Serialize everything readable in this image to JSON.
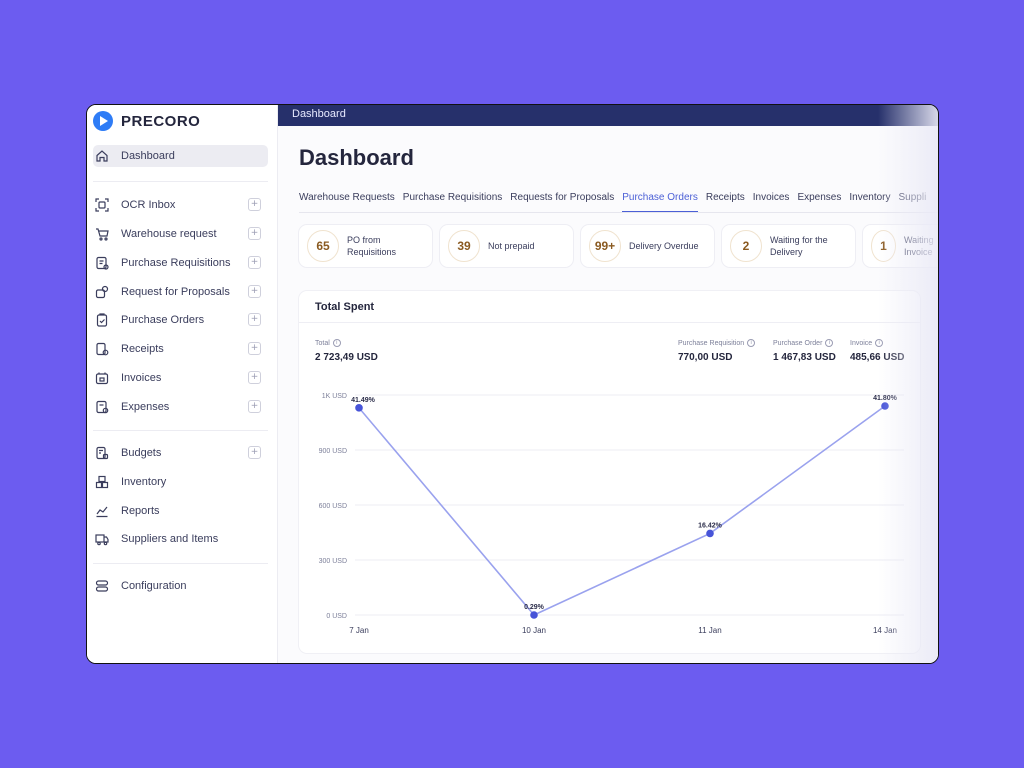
{
  "app": {
    "brand": "PRECORO"
  },
  "sidebar": {
    "items": [
      {
        "label": "Dashboard",
        "icon": "home-icon",
        "active": true,
        "plus": false
      },
      {
        "label": "OCR Inbox",
        "icon": "scan-icon",
        "plus": true
      },
      {
        "label": "Warehouse request",
        "icon": "cart-icon",
        "plus": true
      },
      {
        "label": "Purchase Requisitions",
        "icon": "requisition-icon",
        "plus": true
      },
      {
        "label": "Request for Proposals",
        "icon": "proposal-icon",
        "plus": true
      },
      {
        "label": "Purchase Orders",
        "icon": "clipboard-icon",
        "plus": true
      },
      {
        "label": "Receipts",
        "icon": "receipt-icon",
        "plus": true
      },
      {
        "label": "Invoices",
        "icon": "invoice-icon",
        "plus": true
      },
      {
        "label": "Expenses",
        "icon": "expense-icon",
        "plus": true
      },
      {
        "label": "Budgets",
        "icon": "budget-icon",
        "plus": true
      },
      {
        "label": "Inventory",
        "icon": "boxes-icon",
        "plus": false
      },
      {
        "label": "Reports",
        "icon": "chart-icon",
        "plus": false
      },
      {
        "label": "Suppliers and Items",
        "icon": "truck-icon",
        "plus": false
      },
      {
        "label": "Configuration",
        "icon": "settings-icon",
        "plus": false
      }
    ]
  },
  "topbar": {
    "title": "Dashboard"
  },
  "page": {
    "title": "Dashboard"
  },
  "tabs": [
    {
      "label": "Warehouse Requests",
      "active": false
    },
    {
      "label": "Purchase Requisitions",
      "active": false
    },
    {
      "label": "Requests for Proposals",
      "active": false
    },
    {
      "label": "Purchase Orders",
      "active": true
    },
    {
      "label": "Receipts",
      "active": false
    },
    {
      "label": "Invoices",
      "active": false
    },
    {
      "label": "Expenses",
      "active": false
    },
    {
      "label": "Inventory",
      "active": false
    },
    {
      "label": "Suppli",
      "active": false
    }
  ],
  "stats": [
    {
      "value": "65",
      "label": "PO from Requisitions"
    },
    {
      "value": "39",
      "label": "Not prepaid"
    },
    {
      "value": "99+",
      "label": "Delivery Overdue"
    },
    {
      "value": "2",
      "label": "Waiting for the Delivery"
    },
    {
      "value": "1",
      "label": "Waiting Invoice"
    }
  ],
  "card": {
    "title": "Total Spent",
    "metrics": [
      {
        "label": "Total",
        "value": "2 723,49 USD"
      },
      {
        "label": "Purchase Requisition",
        "value": "770,00 USD"
      },
      {
        "label": "Purchase Order",
        "value": "1 467,83 USD"
      },
      {
        "label": "Invoice",
        "value": "485,66 USD"
      }
    ]
  },
  "colors": {
    "accent": "#4b5fd6",
    "line": "#9aa2ee",
    "point": "#4754d8",
    "sidebarActive": "#ececf2",
    "topbar": "#26306b",
    "background": "#6c5cf0"
  },
  "chart_data": {
    "type": "line",
    "categories": [
      "7 Jan",
      "10 Jan",
      "11 Jan",
      "14 Jan"
    ],
    "values": [
      1130,
      0,
      445,
      1140
    ],
    "data_labels": [
      "41.49%",
      "0.29%",
      "16.42%",
      "41.80%"
    ],
    "y_tick_labels": [
      "0 USD",
      "300 USD",
      "600 USD",
      "900 USD",
      "1K USD"
    ],
    "y_tick_values": [
      0,
      300,
      600,
      900,
      1200
    ],
    "ylim": [
      0,
      1200
    ],
    "grid": true
  }
}
